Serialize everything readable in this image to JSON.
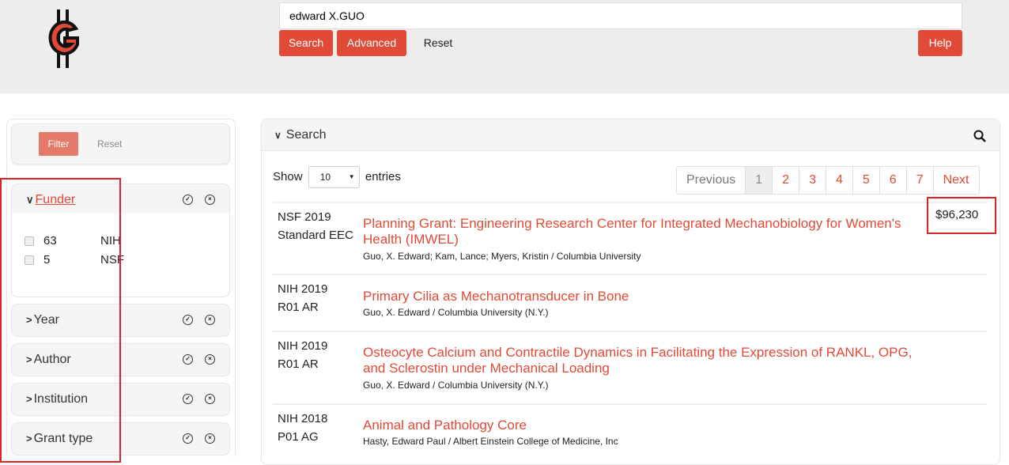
{
  "header": {
    "search_value": "edward X.GUO",
    "search_label": "Search",
    "advanced_label": "Advanced",
    "reset_label": "Reset",
    "help_label": "Help",
    "logo_icon": "g-coin-logo",
    "accent": "#e04a36"
  },
  "filter": {
    "filter_label": "Filter",
    "reset_label": "Reset",
    "facets": [
      {
        "label": "Funder",
        "expanded": true,
        "items": [
          {
            "count": "63",
            "name": "NIH"
          },
          {
            "count": "5",
            "name": "NSF"
          }
        ]
      },
      {
        "label": "Year"
      },
      {
        "label": "Author"
      },
      {
        "label": "Institution"
      },
      {
        "label": "Grant type"
      }
    ]
  },
  "results": {
    "panel_title": "Search",
    "show_label": "Show",
    "entries_value": "10",
    "entries_label": "entries",
    "pagination": [
      "Previous",
      "1",
      "2",
      "3",
      "4",
      "5",
      "6",
      "7",
      "Next"
    ],
    "current_page": "1",
    "rows": [
      {
        "funder": "NSF 2019",
        "type": "Standard EEC",
        "title": "Planning Grant: Engineering Research Center for Integrated Mechanobiology for Women's Health (IMWEL)",
        "authors": "Guo, X. Edward; Kam, Lance; Myers, Kristin / Columbia University",
        "amount": "$96,230"
      },
      {
        "funder": "NIH 2019",
        "type": "R01 AR",
        "title": "Primary Cilia as Mechanotransducer in Bone",
        "authors": "Guo, X. Edward / Columbia University (N.Y.)"
      },
      {
        "funder": "NIH 2019",
        "type": "R01 AR",
        "title": "Osteocyte Calcium and Contractile Dynamics in Facilitating the Expression of RANKL, OPG, and Sclerostin under Mechanical Loading",
        "authors": "Guo, X. Edward / Columbia University (N.Y.)"
      },
      {
        "funder": "NIH 2018",
        "type": "P01 AG",
        "title": "Animal and Pathology Core",
        "authors": "Hasty, Edward Paul / Albert Einstein College of Medicine, Inc"
      }
    ]
  }
}
